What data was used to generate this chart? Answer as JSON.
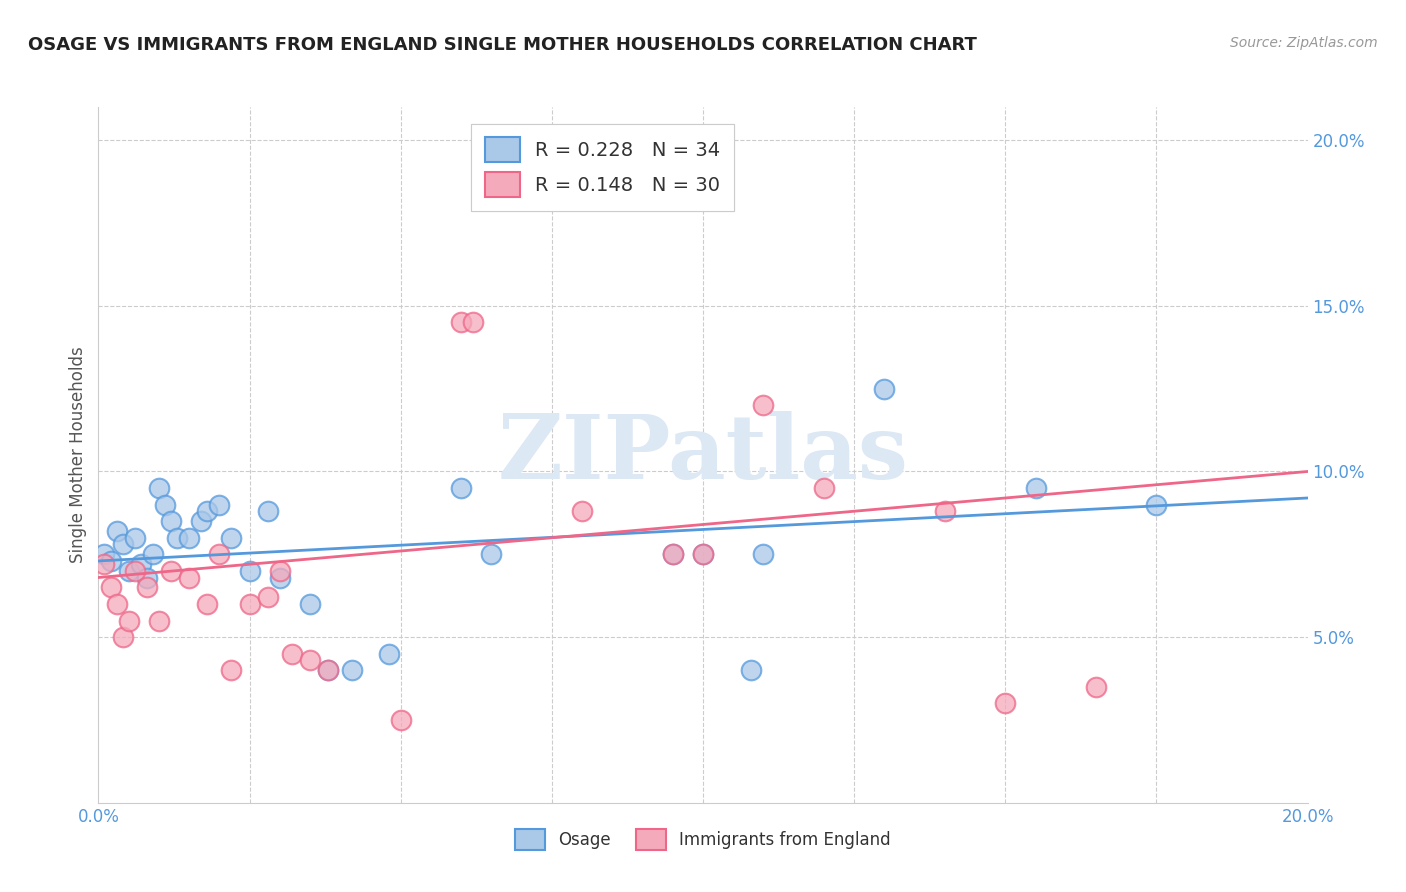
{
  "title": "OSAGE VS IMMIGRANTS FROM ENGLAND SINGLE MOTHER HOUSEHOLDS CORRELATION CHART",
  "source": "Source: ZipAtlas.com",
  "ylabel": "Single Mother Households",
  "xlim": [
    0.0,
    0.2
  ],
  "ylim": [
    0.0,
    0.21
  ],
  "ytick_vals": [
    0.05,
    0.1,
    0.15,
    0.2
  ],
  "ytick_labels": [
    "5.0%",
    "10.0%",
    "15.0%",
    "20.0%"
  ],
  "xtick_vals": [
    0.0,
    0.025,
    0.05,
    0.075,
    0.1,
    0.125,
    0.15,
    0.175,
    0.2
  ],
  "xtick_labels": [
    "0.0%",
    "",
    "",
    "",
    "",
    "",
    "",
    "",
    "20.0%"
  ],
  "osage_R": 0.228,
  "osage_N": 34,
  "england_R": 0.148,
  "england_N": 30,
  "osage_face_color": "#aac8e8",
  "england_face_color": "#f5aabb",
  "osage_edge_color": "#5599dd",
  "england_edge_color": "#ee6688",
  "osage_line_color": "#5599dd",
  "england_line_color": "#ee6688",
  "tick_color": "#5599dd",
  "watermark": "ZIPatlas",
  "watermark_color": "#dde8f5",
  "grid_color": "#cccccc",
  "title_color": "#222222",
  "source_color": "#999999",
  "ylabel_color": "#555555",
  "osage_x": [
    0.001,
    0.002,
    0.003,
    0.004,
    0.005,
    0.006,
    0.007,
    0.008,
    0.009,
    0.01,
    0.011,
    0.012,
    0.013,
    0.015,
    0.017,
    0.018,
    0.02,
    0.022,
    0.025,
    0.028,
    0.03,
    0.035,
    0.038,
    0.042,
    0.048,
    0.06,
    0.065,
    0.095,
    0.1,
    0.108,
    0.11,
    0.13,
    0.155,
    0.175
  ],
  "osage_y": [
    0.075,
    0.073,
    0.082,
    0.078,
    0.07,
    0.08,
    0.072,
    0.068,
    0.075,
    0.095,
    0.09,
    0.085,
    0.08,
    0.08,
    0.085,
    0.088,
    0.09,
    0.08,
    0.07,
    0.088,
    0.068,
    0.06,
    0.04,
    0.04,
    0.045,
    0.095,
    0.075,
    0.075,
    0.075,
    0.04,
    0.075,
    0.125,
    0.095,
    0.09
  ],
  "england_x": [
    0.001,
    0.002,
    0.003,
    0.004,
    0.005,
    0.006,
    0.008,
    0.01,
    0.012,
    0.015,
    0.018,
    0.02,
    0.022,
    0.025,
    0.028,
    0.03,
    0.032,
    0.035,
    0.038,
    0.05,
    0.06,
    0.062,
    0.08,
    0.095,
    0.1,
    0.11,
    0.12,
    0.14,
    0.15,
    0.165
  ],
  "england_y": [
    0.072,
    0.065,
    0.06,
    0.05,
    0.055,
    0.07,
    0.065,
    0.055,
    0.07,
    0.068,
    0.06,
    0.075,
    0.04,
    0.06,
    0.062,
    0.07,
    0.045,
    0.043,
    0.04,
    0.025,
    0.145,
    0.145,
    0.088,
    0.075,
    0.075,
    0.12,
    0.095,
    0.088,
    0.03,
    0.035
  ],
  "osage_line_x0": 0.0,
  "osage_line_y0": 0.073,
  "osage_line_x1": 0.2,
  "osage_line_y1": 0.092,
  "england_line_x0": 0.0,
  "england_line_y0": 0.068,
  "england_line_x1": 0.2,
  "england_line_y1": 0.1
}
